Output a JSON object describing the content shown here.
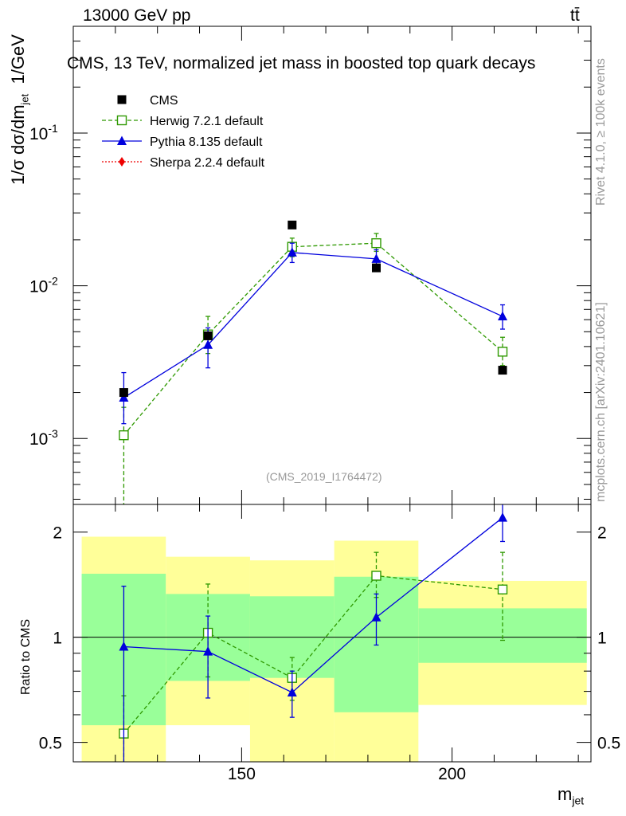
{
  "header": {
    "energy": "13000 GeV pp",
    "process": "tt̄",
    "title": "CMS, 13 TeV, normalized jet mass in boosted top quark decays",
    "analysis_id": "(CMS_2019_I1764472)",
    "rivet_label": "Rivet 4.1.0, ≥ 100k events",
    "site_label": "mcplots.cern.ch [arXiv:2401.10621]"
  },
  "colors": {
    "cms": "#000000",
    "herwig": "#2e9900",
    "pythia": "#0000dd",
    "sherpa": "#ee0000",
    "band_inner": "#99ff99",
    "band_outer": "#ffff99"
  },
  "chart_data": [
    {
      "type": "scatter",
      "panel": "main",
      "ylabel": "1/σ dσ/dm_jet 1/GeV",
      "yscale": "log",
      "xlim": [
        110,
        233
      ],
      "ylim": [
        0.00037,
        0.5
      ],
      "yticks": [
        {
          "value": 0.001,
          "label": "10",
          "exp": "-3"
        },
        {
          "value": 0.01,
          "label": "10",
          "exp": "-2"
        },
        {
          "value": 0.1,
          "label": "10",
          "exp": "-1"
        }
      ],
      "legend": [
        {
          "name": "CMS",
          "key": "cms"
        },
        {
          "name": "Herwig 7.2.1 default",
          "key": "herwig"
        },
        {
          "name": "Pythia 8.135 default",
          "key": "pythia"
        },
        {
          "name": "Sherpa 2.2.4 default",
          "key": "sherpa"
        }
      ],
      "series": [
        {
          "name": "CMS",
          "key": "cms",
          "x": [
            122,
            142,
            162,
            182,
            212
          ],
          "values": [
            0.002,
            0.0047,
            0.025,
            0.0131,
            0.0028
          ]
        },
        {
          "name": "Herwig 7.2.1 default",
          "key": "herwig",
          "x": [
            122,
            142,
            162,
            182,
            212
          ],
          "values": [
            0.00105,
            0.0048,
            0.018,
            0.019,
            0.0037
          ],
          "err_lo": [
            0.00035,
            0.0036,
            0.0155,
            0.0168,
            0.003
          ],
          "err_hi": [
            0.0016,
            0.0063,
            0.0205,
            0.022,
            0.0046
          ]
        },
        {
          "name": "Pythia 8.135 default",
          "key": "pythia",
          "x": [
            122,
            142,
            162,
            182,
            212
          ],
          "values": [
            0.00185,
            0.0041,
            0.0165,
            0.015,
            0.0063
          ],
          "err_lo": [
            0.00125,
            0.0029,
            0.0142,
            0.013,
            0.0052
          ],
          "err_hi": [
            0.0027,
            0.0053,
            0.019,
            0.0172,
            0.0075
          ]
        }
      ]
    },
    {
      "type": "scatter",
      "panel": "ratio",
      "ylabel": "Ratio to CMS",
      "xlabel": "m_jet",
      "yscale": "log",
      "xlim": [
        110,
        233
      ],
      "ylim": [
        0.44,
        2.4
      ],
      "yticks": [
        {
          "value": 0.5,
          "label": "0.5"
        },
        {
          "value": 1,
          "label": "1"
        },
        {
          "value": 2,
          "label": "2"
        }
      ],
      "xticks": [
        {
          "value": 150,
          "label": "150"
        },
        {
          "value": 200,
          "label": "200"
        }
      ],
      "bins": [
        {
          "lo": 112,
          "hi": 132,
          "inner": [
            0.56,
            1.52
          ],
          "outer": [
            0.4,
            1.94
          ]
        },
        {
          "lo": 132,
          "hi": 152,
          "inner": [
            0.75,
            1.33
          ],
          "outer": [
            0.56,
            1.7
          ]
        },
        {
          "lo": 152,
          "hi": 172,
          "inner": [
            0.765,
            1.31
          ],
          "outer": [
            0.425,
            1.66
          ]
        },
        {
          "lo": 172,
          "hi": 192,
          "inner": [
            0.61,
            1.49
          ],
          "outer": [
            0.41,
            1.89
          ]
        },
        {
          "lo": 192,
          "hi": 232,
          "inner": [
            0.845,
            1.21
          ],
          "outer": [
            0.64,
            1.45
          ]
        }
      ],
      "series": [
        {
          "name": "Herwig 7.2.1 default",
          "key": "herwig",
          "x": [
            122,
            142,
            162,
            182,
            212
          ],
          "values": [
            0.53,
            1.03,
            0.765,
            1.5,
            1.37
          ],
          "err_lo": [
            0.38,
            0.77,
            0.66,
            1.3,
            0.98
          ],
          "err_hi": [
            0.68,
            1.42,
            0.875,
            1.75,
            1.75
          ]
        },
        {
          "name": "Pythia 8.135 default",
          "key": "pythia",
          "x": [
            122,
            142,
            162,
            182,
            212
          ],
          "values": [
            0.94,
            0.91,
            0.695,
            1.14,
            2.2
          ],
          "err_lo": [
            0.44,
            0.67,
            0.59,
            0.95,
            1.88
          ],
          "err_hi": [
            1.4,
            1.15,
            0.8,
            1.33,
            2.4
          ]
        }
      ]
    }
  ]
}
